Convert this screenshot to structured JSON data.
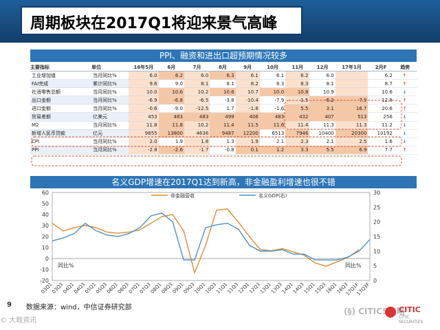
{
  "page": {
    "title": "周期板块在2017Q1将迎来景气高峰",
    "page_number": "9",
    "source": "数据来源：wind，中信证券研究部",
    "watermark_left": "© 大戟资讯",
    "watermark_center": "(§) CITICS策略",
    "logo_text": "CITIC",
    "logo_sub": "CITIC SECURITIES"
  },
  "table_panel": {
    "title": "PPI、融资和进出口超预期情况较多",
    "headers": [
      "主要指标",
      "单位",
      "16年5月",
      "6月",
      "7月",
      "8月",
      "9月",
      "10月",
      "11月",
      "12月",
      "17年1月",
      "2月F",
      "趋势"
    ],
    "rows": [
      {
        "name": "工业增加值",
        "unit": "当月同比%",
        "values": [
          "6.0",
          "6.2",
          "6.0",
          "6.3",
          "6.1",
          "6.1",
          "6.2",
          "6.0",
          "",
          "6.2"
        ],
        "trend": "↑",
        "up": true
      },
      {
        "name": "FAI完成",
        "unit": "累计同比%",
        "values": [
          "9.6",
          "9.0",
          "8.1",
          "8.1",
          "8.2",
          "8.3",
          "8.3",
          "8.1",
          "",
          "8.7"
        ],
        "trend": "↑",
        "up": true
      },
      {
        "name": "社消零售总额",
        "unit": "当月同比%",
        "values": [
          "10.0",
          "10.6",
          "10.2",
          "10.6",
          "10.7",
          "10.0",
          "10.8",
          "10.9",
          "",
          "10.6"
        ],
        "trend": "↓",
        "up": false
      },
      {
        "name": "出口金额",
        "unit": "当月同比%",
        "values": [
          "-6.9",
          "-6.8",
          "-6.5",
          "-3.8",
          "-10.4",
          "-7.9",
          "-1.5",
          "-6.2",
          "7.9",
          "12.8"
        ],
        "trend": "↑",
        "up": true
      },
      {
        "name": "进口金额",
        "unit": "当月同比%",
        "values": [
          "-0.6",
          "-9.0",
          "-12.5",
          "1.7",
          "-1.6",
          "-1.6",
          "5.5",
          "3.1",
          "16.7",
          "20.6"
        ],
        "trend": "↑",
        "up": true
      },
      {
        "name": "贸易差额",
        "unit": "亿美元",
        "values": [
          "453",
          "483",
          "483",
          "499",
          "406",
          "483",
          "432",
          "407",
          "513",
          "256"
        ],
        "trend": "↓",
        "up": false
      },
      {
        "name": "M2",
        "unit": "当月同比%",
        "values": [
          "11.8",
          "11.8",
          "10.2",
          "11.4",
          "11.5",
          "11.6",
          "11.4",
          "11.3",
          "11.3",
          "11.2"
        ],
        "trend": "↓",
        "up": false
      },
      {
        "name": "新增人民币贷款",
        "unit": "亿元",
        "values": [
          "9855",
          "13800",
          "4636",
          "9487",
          "12200",
          "6513",
          "7946",
          "10400",
          "20300",
          "10192"
        ],
        "trend": "↓",
        "up": false
      },
      {
        "name": "CPI",
        "unit": "当月同比%",
        "values": [
          "2.0",
          "1.9",
          "1.8",
          "1.3",
          "1.9",
          "2.1",
          "2.3",
          "2.1",
          "2.5",
          "1.6"
        ],
        "trend": "↓",
        "up": false
      },
      {
        "name": "PPI",
        "unit": "当月同比%",
        "values": [
          "-2.8",
          "-2.6",
          "-1.7",
          "-0.8",
          "0.1",
          "1.2",
          "3.3",
          "5.5",
          "6.9",
          "7.7"
        ],
        "trend": "↑",
        "up": true
      }
    ]
  },
  "chart_panel": {
    "title": "名义GDP增速在2017Q1达到新高，非金融盈利增速也很不错"
  },
  "chart_data": {
    "type": "line",
    "title": "名义GDP增速在2017Q1达到新高，非金融盈利增速也很不错",
    "x": [
      "03Q1",
      "03Q3",
      "04Q1",
      "04Q3",
      "05Q1",
      "05Q3",
      "06Q1",
      "06Q3",
      "07Q1",
      "07Q3",
      "08Q1",
      "08Q3",
      "09Q1",
      "09Q3",
      "10Q1",
      "10Q3",
      "11Q1",
      "11Q3",
      "12Q1",
      "12Q3",
      "13Q1",
      "13Q3",
      "14Q1",
      "14Q3",
      "15Q1",
      "15Q3",
      "16Q1",
      "16Q3",
      "17Q1F",
      "17Q3F"
    ],
    "left_axis": {
      "label": "同比%",
      "ylim": [
        -20,
        60
      ],
      "ticks": [
        -20,
        -10,
        0,
        10,
        20,
        30,
        40,
        50,
        60
      ]
    },
    "right_axis": {
      "label": "同比%",
      "ylim": [
        0,
        30
      ],
      "ticks": [
        0,
        5,
        10,
        15,
        20,
        25,
        30
      ]
    },
    "series": [
      {
        "name": "非金融营收",
        "axis": "left",
        "color": "#e08a2e",
        "values": [
          32,
          25,
          28,
          30,
          28,
          24,
          23,
          24,
          26,
          32,
          38,
          40,
          25,
          -13,
          12,
          44,
          45,
          33,
          20,
          8,
          7,
          9,
          6,
          3,
          -4,
          -7,
          -3,
          1,
          8,
          null
        ]
      },
      {
        "name": "名义GDP(右)",
        "axis": "right",
        "color": "#4a90c8",
        "values": [
          13.5,
          14.5,
          16,
          19.5,
          17,
          15.5,
          15,
          16,
          18,
          22,
          23,
          20,
          7,
          7,
          18,
          19,
          19.5,
          17.5,
          12,
          10,
          10,
          10.5,
          9,
          9,
          7,
          7,
          7,
          8,
          10,
          14
        ]
      }
    ]
  }
}
